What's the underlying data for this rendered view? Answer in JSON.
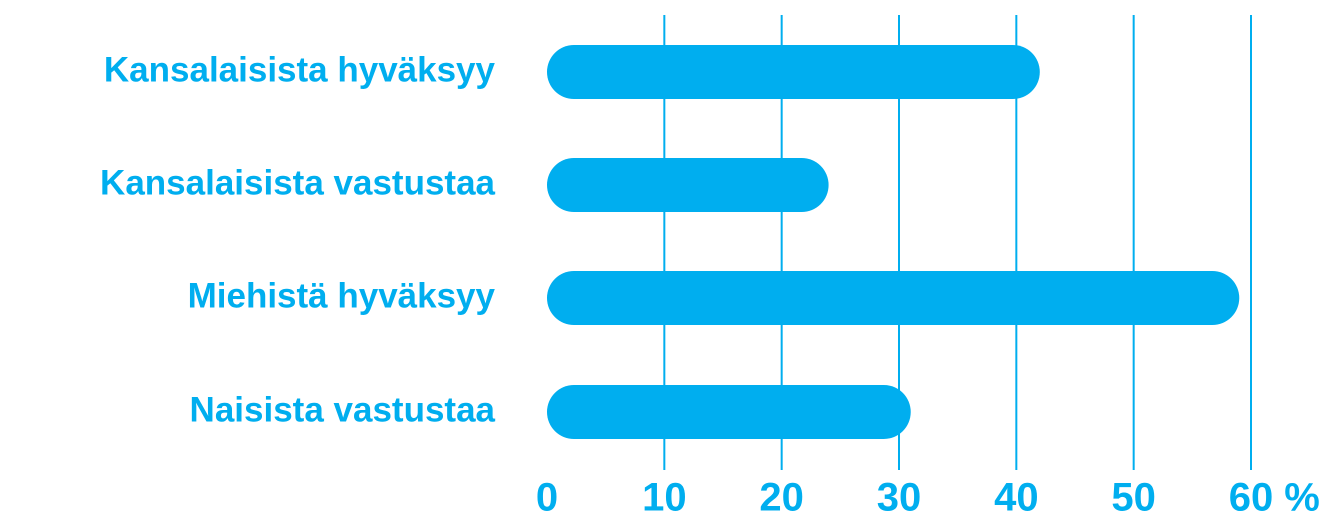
{
  "chart_data": {
    "type": "bar",
    "orientation": "horizontal",
    "categories": [
      "Kansalaisista hyväksyy",
      "Kansalaisista vastustaa",
      "Miehistä hyväksyy",
      "Naisista vastustaa"
    ],
    "values": [
      42,
      24,
      59,
      31
    ],
    "color": "#00aeef",
    "xlim": [
      0,
      60
    ],
    "xticks": [
      0,
      10,
      20,
      30,
      40,
      50,
      60
    ],
    "x_unit": "%",
    "grid": true
  }
}
